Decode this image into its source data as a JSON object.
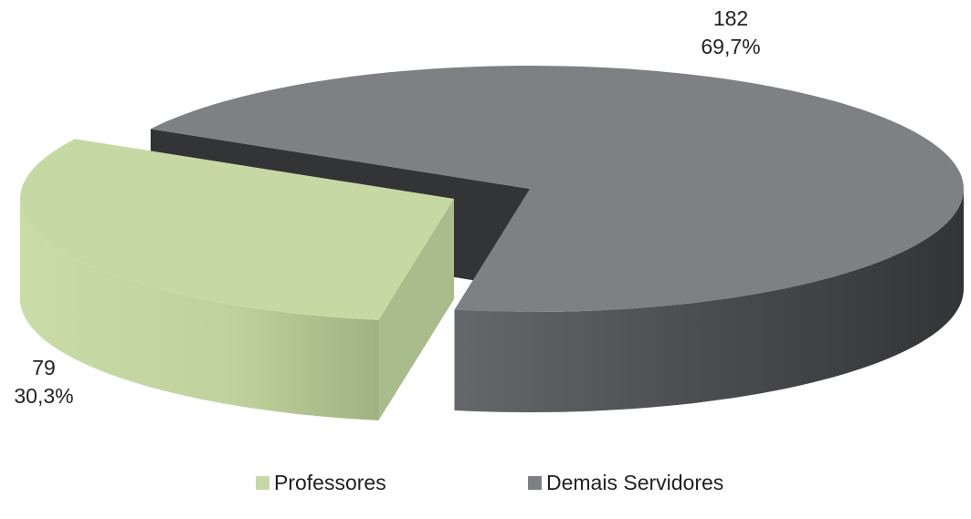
{
  "chart_data": {
    "type": "pie3d",
    "categories": [
      "Professores",
      "Demais Servidores"
    ],
    "values": [
      79,
      182
    ],
    "percentages": [
      30.3,
      69.7
    ],
    "percentage_labels": [
      "30,3%",
      "69,7%"
    ],
    "colors": [
      "#c6d9a4",
      "#7f8084"
    ],
    "legend": "bottom"
  }
}
